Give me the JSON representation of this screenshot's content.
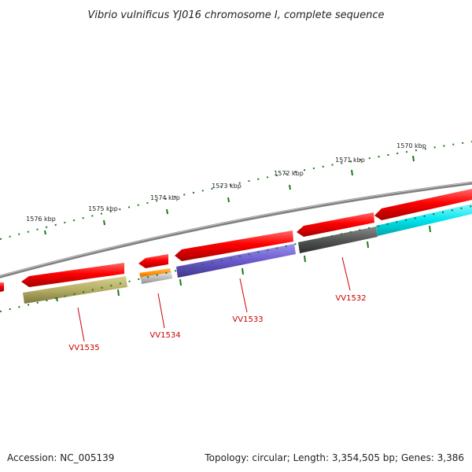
{
  "title": "Vibrio vulnificus YJ016 chromosome I, complete sequence",
  "footer": {
    "accession": "Accession: NC_005139",
    "summary": "Topology: circular; Length: 3,354,505 bp; Genes: 3,386"
  },
  "ruler": {
    "labels": [
      "1576 kbp",
      "1575 kbp",
      "1574 kbp",
      "1573 kbp",
      "1572 kbp",
      "1571 kbp",
      "1570 kbp"
    ]
  },
  "genes": [
    {
      "locus": "VV1535",
      "strand": "reverse",
      "color": "#b5ad63"
    },
    {
      "locus": "VV1534",
      "strand": "reverse",
      "color": "#ff8c00"
    },
    {
      "locus": "VV1533",
      "strand": "reverse",
      "color": "#6a5acd"
    },
    {
      "locus": "VV1532",
      "strand": "reverse",
      "color": "#555555"
    }
  ],
  "colors": {
    "backbone": "#808080",
    "cds": "#ff0000",
    "tick": "#1a7a1a",
    "label": "#cc0000",
    "cyan_feature": "#00e5ee",
    "small_feature": "#aaaaaa"
  }
}
